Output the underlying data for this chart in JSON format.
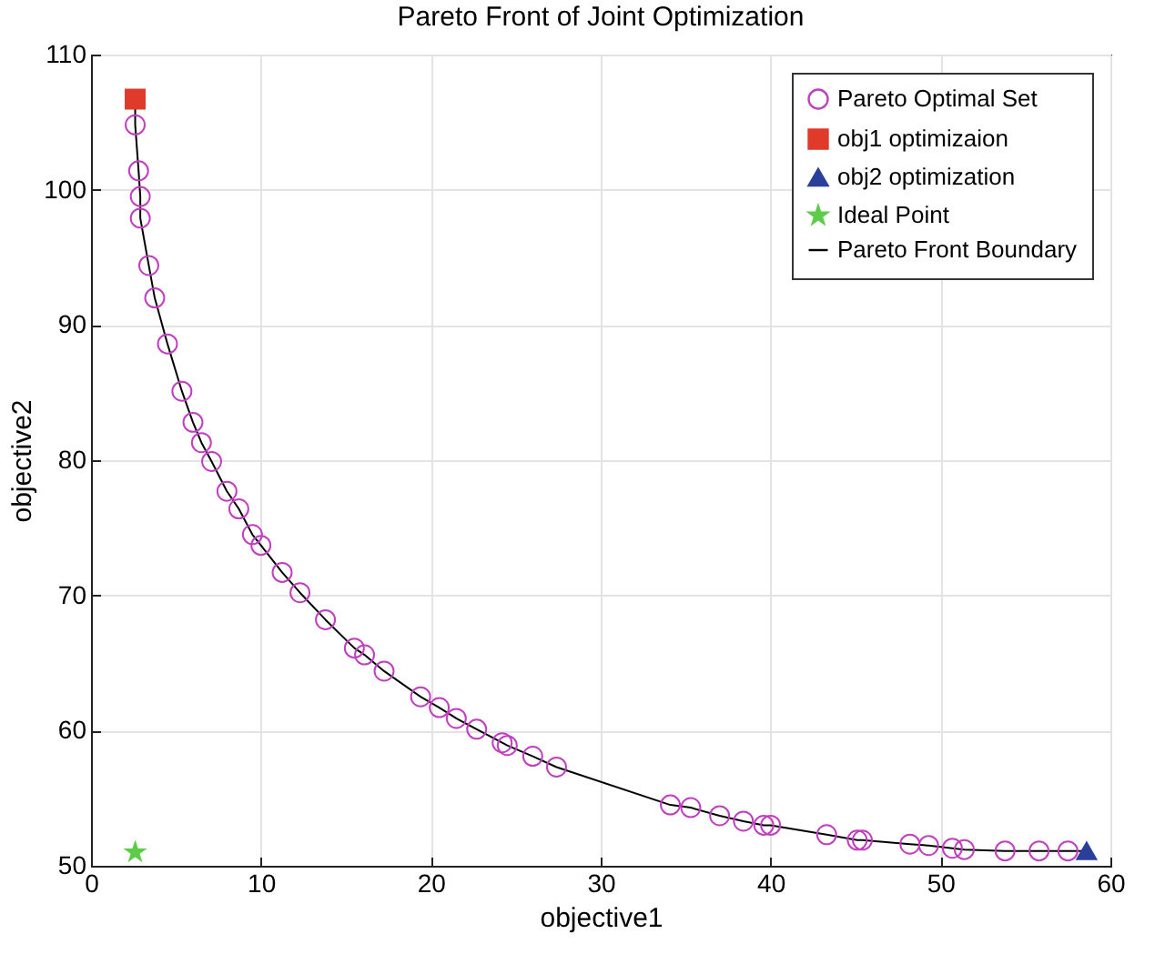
{
  "chart_data": {
    "type": "scatter",
    "title": "Pareto Front of Joint Optimization",
    "xlabel": "objective1",
    "ylabel": "objective2",
    "xlim": [
      0,
      60
    ],
    "ylim": [
      50,
      110
    ],
    "xticks": [
      0,
      10,
      20,
      30,
      40,
      50,
      60
    ],
    "yticks": [
      50,
      60,
      70,
      80,
      90,
      100,
      110
    ],
    "grid": true,
    "legend": "top right",
    "series": [
      {
        "name": "Pareto Optimal Set",
        "marker": "circle",
        "color": "#c040c0",
        "x": [
          2.6,
          2.8,
          2.9,
          2.9,
          3.4,
          3.75,
          4.5,
          5.35,
          6.0,
          6.5,
          7.1,
          8.0,
          8.7,
          9.5,
          10.0,
          11.25,
          12.3,
          13.8,
          15.5,
          16.1,
          17.25,
          19.4,
          20.5,
          21.5,
          22.7,
          24.2,
          24.5,
          26.0,
          27.4,
          34.1,
          35.3,
          37.0,
          38.4,
          39.6,
          40.0,
          43.3,
          45.1,
          45.4,
          48.2,
          49.3,
          50.7,
          51.4,
          53.8,
          55.8,
          57.5
        ],
        "values": [
          104.8,
          101.4,
          99.5,
          97.9,
          94.4,
          92.0,
          88.6,
          85.1,
          82.8,
          81.3,
          79.9,
          77.7,
          76.4,
          74.5,
          73.7,
          71.7,
          70.2,
          68.2,
          66.1,
          65.6,
          64.4,
          62.5,
          61.7,
          60.9,
          60.1,
          59.1,
          58.9,
          58.1,
          57.3,
          54.5,
          54.3,
          53.7,
          53.3,
          53.0,
          53.0,
          52.3,
          51.9,
          51.9,
          51.6,
          51.5,
          51.3,
          51.2,
          51.1,
          51.1,
          51.1
        ]
      },
      {
        "name": "obj1 optimizaion",
        "marker": "square",
        "color": "#e03a2a",
        "x": [
          2.6
        ],
        "values": [
          106.7
        ]
      },
      {
        "name": "obj2 optimization",
        "marker": "triangle",
        "color": "#2b3f9a",
        "x": [
          58.6
        ],
        "values": [
          51.1
        ]
      },
      {
        "name": "Ideal Point",
        "marker": "star",
        "color": "#5ccc4a",
        "x": [
          2.6
        ],
        "values": [
          51.0
        ]
      },
      {
        "name": "Pareto Front Boundary",
        "type": "line",
        "marker": "none",
        "line_style": "solid",
        "color": "#000000",
        "x": [
          2.6,
          2.6,
          2.8,
          2.9,
          2.9,
          3.4,
          3.75,
          4.5,
          5.35,
          6.0,
          6.5,
          7.1,
          8.0,
          8.7,
          9.5,
          10.0,
          11.25,
          12.3,
          13.8,
          15.5,
          16.1,
          17.25,
          19.4,
          20.5,
          21.5,
          22.7,
          24.2,
          24.5,
          26.0,
          27.4,
          34.1,
          35.3,
          37.0,
          38.4,
          39.6,
          40.0,
          43.3,
          45.1,
          45.4,
          48.2,
          49.3,
          50.7,
          51.4,
          53.8,
          55.8,
          57.5,
          58.6
        ],
        "values": [
          106.7,
          104.8,
          101.4,
          99.5,
          97.9,
          94.4,
          92.0,
          88.6,
          85.1,
          82.8,
          81.3,
          79.9,
          77.7,
          76.4,
          74.5,
          73.7,
          71.7,
          70.2,
          68.2,
          66.1,
          65.6,
          64.4,
          62.5,
          61.7,
          60.9,
          60.1,
          59.1,
          58.9,
          58.1,
          57.3,
          54.5,
          54.3,
          53.7,
          53.3,
          53.0,
          53.0,
          52.3,
          51.9,
          51.9,
          51.6,
          51.5,
          51.3,
          51.2,
          51.1,
          51.1,
          51.1,
          51.1
        ]
      }
    ]
  }
}
